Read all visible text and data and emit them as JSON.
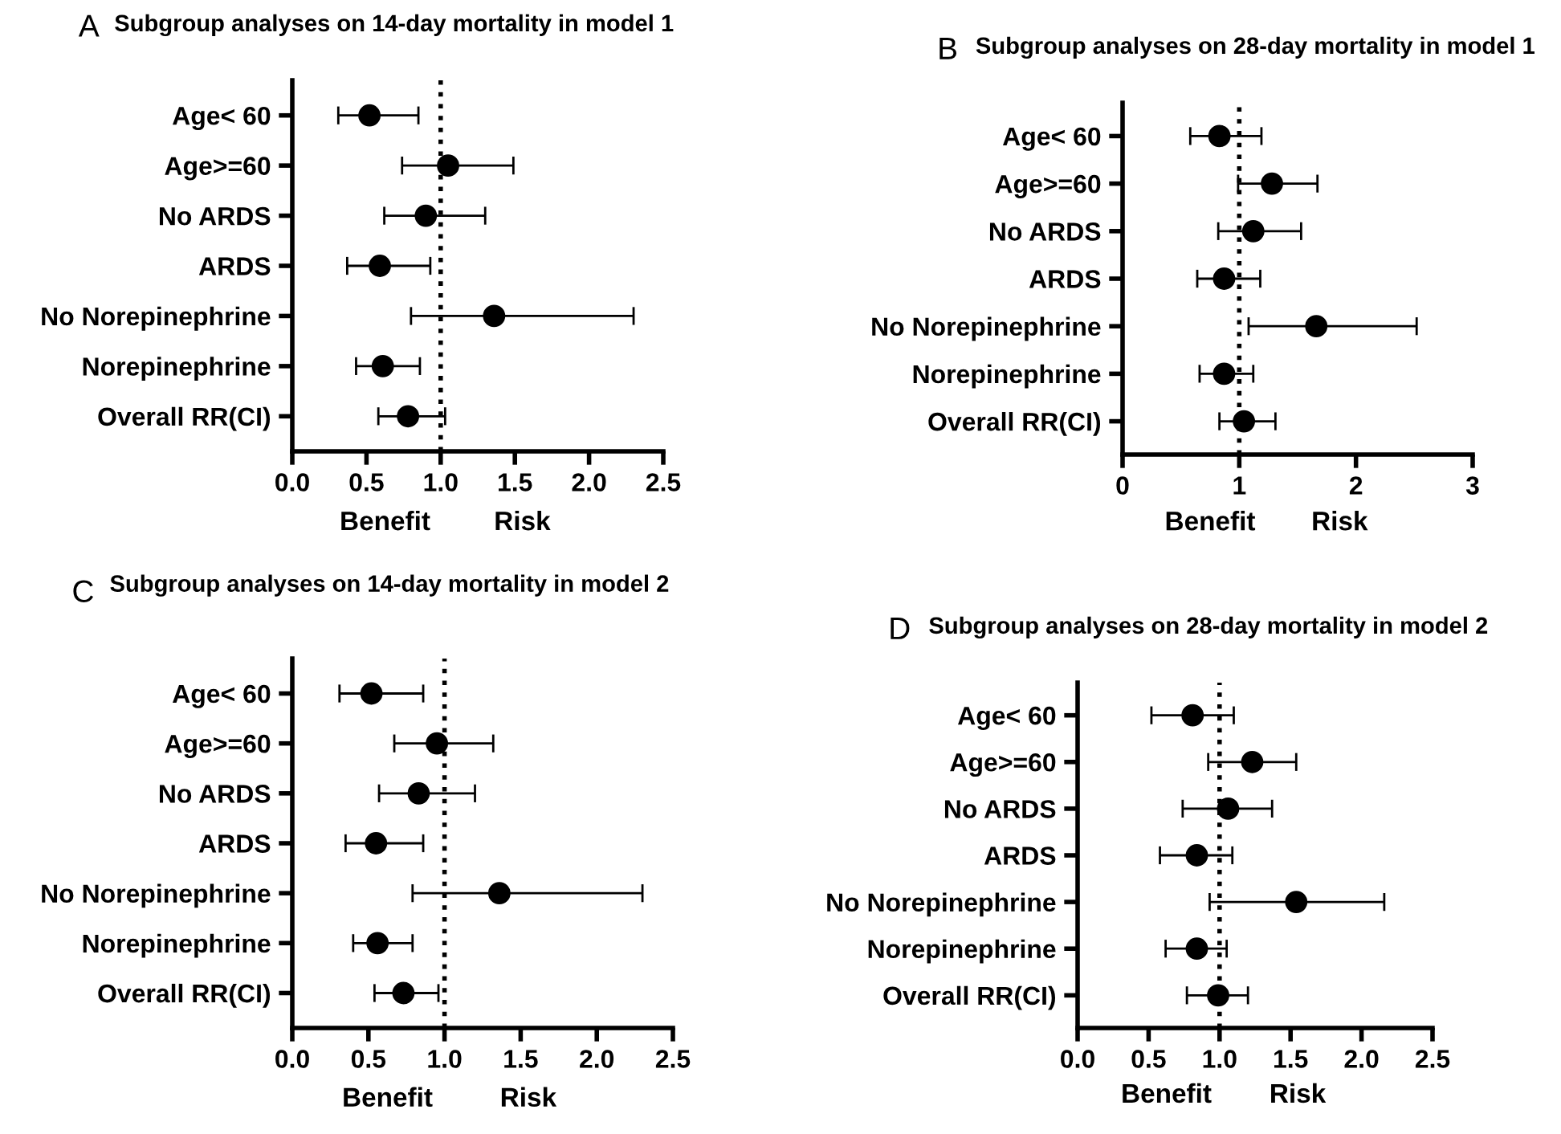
{
  "chart_data": [
    {
      "type": "scatter",
      "orientation": "horizontal",
      "title": "Subgroup analyses on 14-day mortality in model 1",
      "annotations": [
        "A",
        "Benefit",
        "Risk"
      ],
      "categories": [
        "Age< 60",
        "Age>=60",
        "No ARDS",
        "ARDS",
        "No Norepinephrine",
        "Norepinephrine",
        "Overall RR(CI)"
      ],
      "series": [
        {
          "color": "#000000",
          "values": [
            0.52,
            1.05,
            0.9,
            0.59,
            1.36,
            0.61,
            0.78
          ],
          "errors": [
            [
              0.31,
              0.85
            ],
            [
              0.74,
              1.49
            ],
            [
              0.62,
              1.3
            ],
            [
              0.37,
              0.93
            ],
            [
              0.8,
              2.3
            ],
            [
              0.43,
              0.86
            ],
            [
              0.58,
              1.03
            ]
          ]
        }
      ],
      "marker": "circle",
      "xlim": [
        0,
        2.5
      ],
      "xticks": [
        {
          "value": 0,
          "label": "0.0"
        },
        {
          "value": 0.5,
          "label": "0.5"
        },
        {
          "value": 1,
          "label": "1.0"
        },
        {
          "value": 1.5,
          "label": "1.5"
        },
        {
          "value": 2,
          "label": "2.0"
        },
        {
          "value": 2.5,
          "label": "2.5"
        }
      ],
      "ref_lines": [
        {
          "axis": "x",
          "value": 1,
          "line_style": "dotted",
          "color": "#000000"
        }
      ]
    },
    {
      "type": "scatter",
      "orientation": "horizontal",
      "title": "Subgroup analyses on 28-day mortality in model 1",
      "annotations": [
        "B",
        "Benefit",
        "Risk"
      ],
      "categories": [
        "Age< 60",
        "Age>=60",
        "No ARDS",
        "ARDS",
        "No Norepinephrine",
        "Norepinephrine",
        "Overall RR(CI)"
      ],
      "series": [
        {
          "color": "#000000",
          "values": [
            0.83,
            1.28,
            1.12,
            0.87,
            1.66,
            0.87,
            1.04
          ],
          "errors": [
            [
              0.58,
              1.19
            ],
            [
              0.99,
              1.67
            ],
            [
              0.82,
              1.53
            ],
            [
              0.64,
              1.18
            ],
            [
              1.08,
              2.52
            ],
            [
              0.66,
              1.12
            ],
            [
              0.83,
              1.31
            ]
          ]
        }
      ],
      "marker": "circle",
      "xlim": [
        0,
        3
      ],
      "xticks": [
        0,
        1,
        2,
        3
      ],
      "ref_lines": [
        {
          "axis": "x",
          "value": 1,
          "line_style": "dotted",
          "color": "#000000"
        }
      ]
    },
    {
      "type": "scatter",
      "orientation": "horizontal",
      "title": "Subgroup analyses on 14-day mortality in model 2",
      "annotations": [
        "C",
        "Benefit",
        "Risk"
      ],
      "categories": [
        "Age< 60",
        "Age>=60",
        "No ARDS",
        "ARDS",
        "No Norepinephrine",
        "Norepinephrine",
        "Overall RR(CI)"
      ],
      "series": [
        {
          "color": "#000000",
          "values": [
            0.52,
            0.95,
            0.83,
            0.55,
            1.36,
            0.56,
            0.73
          ],
          "errors": [
            [
              0.31,
              0.86
            ],
            [
              0.67,
              1.32
            ],
            [
              0.57,
              1.2
            ],
            [
              0.35,
              0.86
            ],
            [
              0.79,
              2.3
            ],
            [
              0.4,
              0.79
            ],
            [
              0.54,
              0.96
            ]
          ]
        }
      ],
      "marker": "circle",
      "xlim": [
        0,
        2.5
      ],
      "xticks": [
        {
          "value": 0,
          "label": "0.0"
        },
        {
          "value": 0.5,
          "label": "0.5"
        },
        {
          "value": 1,
          "label": "1.0"
        },
        {
          "value": 1.5,
          "label": "1.5"
        },
        {
          "value": 2,
          "label": "2.0"
        },
        {
          "value": 2.5,
          "label": "2.5"
        }
      ],
      "ref_lines": [
        {
          "axis": "x",
          "value": 1,
          "line_style": "dotted",
          "color": "#000000"
        }
      ]
    },
    {
      "type": "scatter",
      "orientation": "horizontal",
      "title": "Subgroup analyses on 28-day mortality in model 2",
      "annotations": [
        "D",
        "Benefit",
        "Risk"
      ],
      "categories": [
        "Age< 60",
        "Age>=60",
        "No ARDS",
        "ARDS",
        "No Norepinephrine",
        "Norepinephrine",
        "Overall RR(CI)"
      ],
      "series": [
        {
          "color": "#000000",
          "values": [
            0.81,
            1.23,
            1.06,
            0.84,
            1.54,
            0.84,
            0.99
          ],
          "errors": [
            [
              0.52,
              1.1
            ],
            [
              0.92,
              1.54
            ],
            [
              0.74,
              1.37
            ],
            [
              0.58,
              1.09
            ],
            [
              0.93,
              2.16
            ],
            [
              0.62,
              1.05
            ],
            [
              0.77,
              1.2
            ]
          ]
        }
      ],
      "marker": "circle",
      "xlim": [
        0,
        2.5
      ],
      "xticks": [
        {
          "value": 0,
          "label": "0.0"
        },
        {
          "value": 0.5,
          "label": "0.5"
        },
        {
          "value": 1,
          "label": "1.0"
        },
        {
          "value": 1.5,
          "label": "1.5"
        },
        {
          "value": 2,
          "label": "2.0"
        },
        {
          "value": 2.5,
          "label": "2.5"
        }
      ],
      "ref_lines": [
        {
          "axis": "x",
          "value": 1,
          "line_style": "dotted",
          "color": "#000000"
        }
      ]
    }
  ]
}
